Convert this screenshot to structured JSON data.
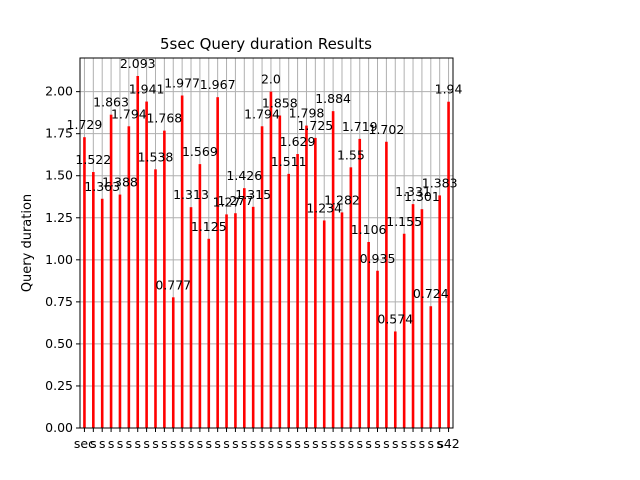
{
  "chart_data": {
    "type": "bar",
    "title": "5sec Query duration Results",
    "xlabel": "",
    "ylabel": "Query duration",
    "ylim": [
      0,
      2.2
    ],
    "yticks": [
      0.0,
      0.25,
      0.5,
      0.75,
      1.0,
      1.25,
      1.5,
      1.75,
      2.0
    ],
    "ytick_labels": [
      "0.00",
      "0.25",
      "0.50",
      "0.75",
      "1.00",
      "1.25",
      "1.50",
      "1.75",
      "2.00"
    ],
    "grid": true,
    "bar_color": "#ff0000",
    "categories": [
      "s1",
      "s2",
      "s3",
      "s4",
      "s5",
      "s6",
      "s7",
      "s8",
      "s9",
      "s10",
      "s11",
      "s12",
      "s13",
      "s14",
      "s15",
      "s16",
      "s17",
      "s18",
      "s19",
      "s20",
      "s21",
      "s22",
      "s23",
      "s24",
      "s25",
      "s26",
      "s27",
      "s28",
      "s29",
      "s30",
      "s31",
      "s32",
      "s33",
      "s34",
      "s35",
      "s36",
      "s37",
      "s38",
      "s39",
      "s40",
      "s41",
      "s42"
    ],
    "tick_labels": [
      "sec",
      "s",
      "s",
      "s",
      "s",
      "s",
      "s",
      "s",
      "s",
      "s",
      "s",
      "s",
      "s",
      "s",
      "s",
      "s",
      "s",
      "s",
      "s",
      "s",
      "s",
      "s",
      "s",
      "s",
      "s",
      "s",
      "s",
      "s",
      "s",
      "s",
      "s",
      "s",
      "s",
      "s",
      "s",
      "s",
      "s",
      "s",
      "s",
      "s",
      "s",
      "s42"
    ],
    "values": [
      1.729,
      1.522,
      1.363,
      1.863,
      1.388,
      1.794,
      2.093,
      1.941,
      1.538,
      1.768,
      0.777,
      1.977,
      1.313,
      1.569,
      1.125,
      1.967,
      1.27,
      1.277,
      1.426,
      1.315,
      1.794,
      2.0,
      1.858,
      1.511,
      1.629,
      1.798,
      1.725,
      1.234,
      1.884,
      1.282,
      1.55,
      1.719,
      1.106,
      0.935,
      1.702,
      0.574,
      1.155,
      1.331,
      1.301,
      0.724,
      1.383,
      1.94
    ],
    "value_labels": [
      "1.729",
      "1.522",
      "1.363",
      "1.863",
      "1.388",
      "1.794",
      "2.093",
      "1.941",
      "1.538",
      "1.768",
      "0.777",
      "1.977",
      "1.313",
      "1.569",
      "1.125",
      "1.967",
      "1.27",
      "1.277",
      "1.426",
      "1.315",
      "1.794",
      "2.0",
      "1.858",
      "1.511",
      "1.629",
      "1.798",
      "1.725",
      "1.234",
      "1.884",
      "1.282",
      "1.55",
      "1.719",
      "1.106",
      "0.935",
      "1.702",
      "0.574",
      "1.155",
      "1.331",
      "1.301",
      "0.724",
      "1.383",
      "1.94"
    ]
  }
}
